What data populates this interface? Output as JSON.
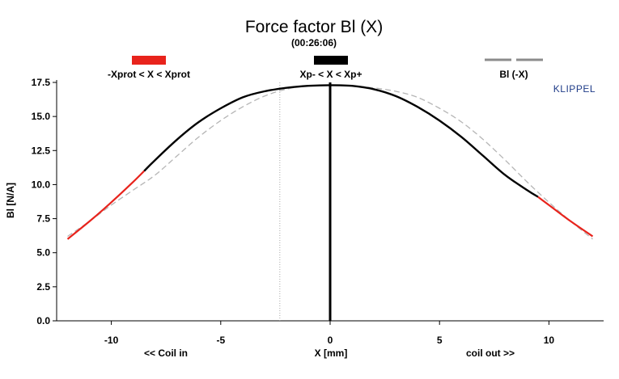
{
  "chart_data": {
    "type": "line",
    "title": "Force factor Bl (X)",
    "subtitle": "(00:26:06)",
    "brand": "KLIPPEL",
    "xlabel": "X [mm]",
    "xlabel_left": "<< Coil in",
    "xlabel_right": "coil out >>",
    "ylabel": "Bl [N/A]",
    "xlim": [
      -12.5,
      12.5
    ],
    "ylim": [
      0,
      17.5
    ],
    "xticks": [
      -10,
      -5,
      0,
      5,
      10
    ],
    "xtick_labels": [
      "-10",
      "-5",
      "0",
      "5",
      "10"
    ],
    "yticks": [
      0,
      2.5,
      5,
      7.5,
      10,
      12.5,
      15,
      17.5
    ],
    "ytick_labels": [
      "0.0",
      "2.5",
      "5.0",
      "7.5",
      "10.0",
      "12.5",
      "15.0",
      "17.5"
    ],
    "xprot_limit": 8.5,
    "xp_minus": -2.3,
    "xp_plus": 9.5,
    "legend": [
      {
        "label": "-Xprot < X < Xprot",
        "color": "#e8231c",
        "style": "solid"
      },
      {
        "label": "Xp- < X < Xp+",
        "color": "#000000",
        "style": "solid"
      },
      {
        "label": "Bl (-X)",
        "color": "#8c8c8c",
        "style": "dashed"
      }
    ],
    "series": [
      {
        "name": "Bl (X)",
        "x": [
          -12,
          -11,
          -10,
          -9,
          -8.5,
          -8,
          -7,
          -6,
          -5,
          -4,
          -3,
          -2,
          -1,
          0,
          1,
          2,
          3,
          4,
          5,
          6,
          7,
          8,
          9,
          9.5,
          10,
          11,
          12
        ],
        "y": [
          6.0,
          7.3,
          8.7,
          10.2,
          11.0,
          11.8,
          13.3,
          14.6,
          15.6,
          16.4,
          16.85,
          17.1,
          17.25,
          17.3,
          17.25,
          17.0,
          16.5,
          15.7,
          14.7,
          13.5,
          12.1,
          10.7,
          9.6,
          9.1,
          8.5,
          7.3,
          6.2
        ]
      },
      {
        "name": "Bl (-X)",
        "x": [
          -12,
          -11,
          -10,
          -9,
          -8,
          -7,
          -6,
          -5,
          -4,
          -3,
          -2,
          -1,
          0,
          1,
          2,
          3,
          4,
          5,
          6,
          7,
          8,
          9,
          10,
          11,
          12
        ],
        "y": [
          6.2,
          7.3,
          8.5,
          9.6,
          10.7,
          12.1,
          13.5,
          14.7,
          15.7,
          16.5,
          17.0,
          17.25,
          17.3,
          17.25,
          17.1,
          16.85,
          16.4,
          15.6,
          14.6,
          13.3,
          11.8,
          10.2,
          8.7,
          7.3,
          6.0
        ]
      }
    ]
  }
}
